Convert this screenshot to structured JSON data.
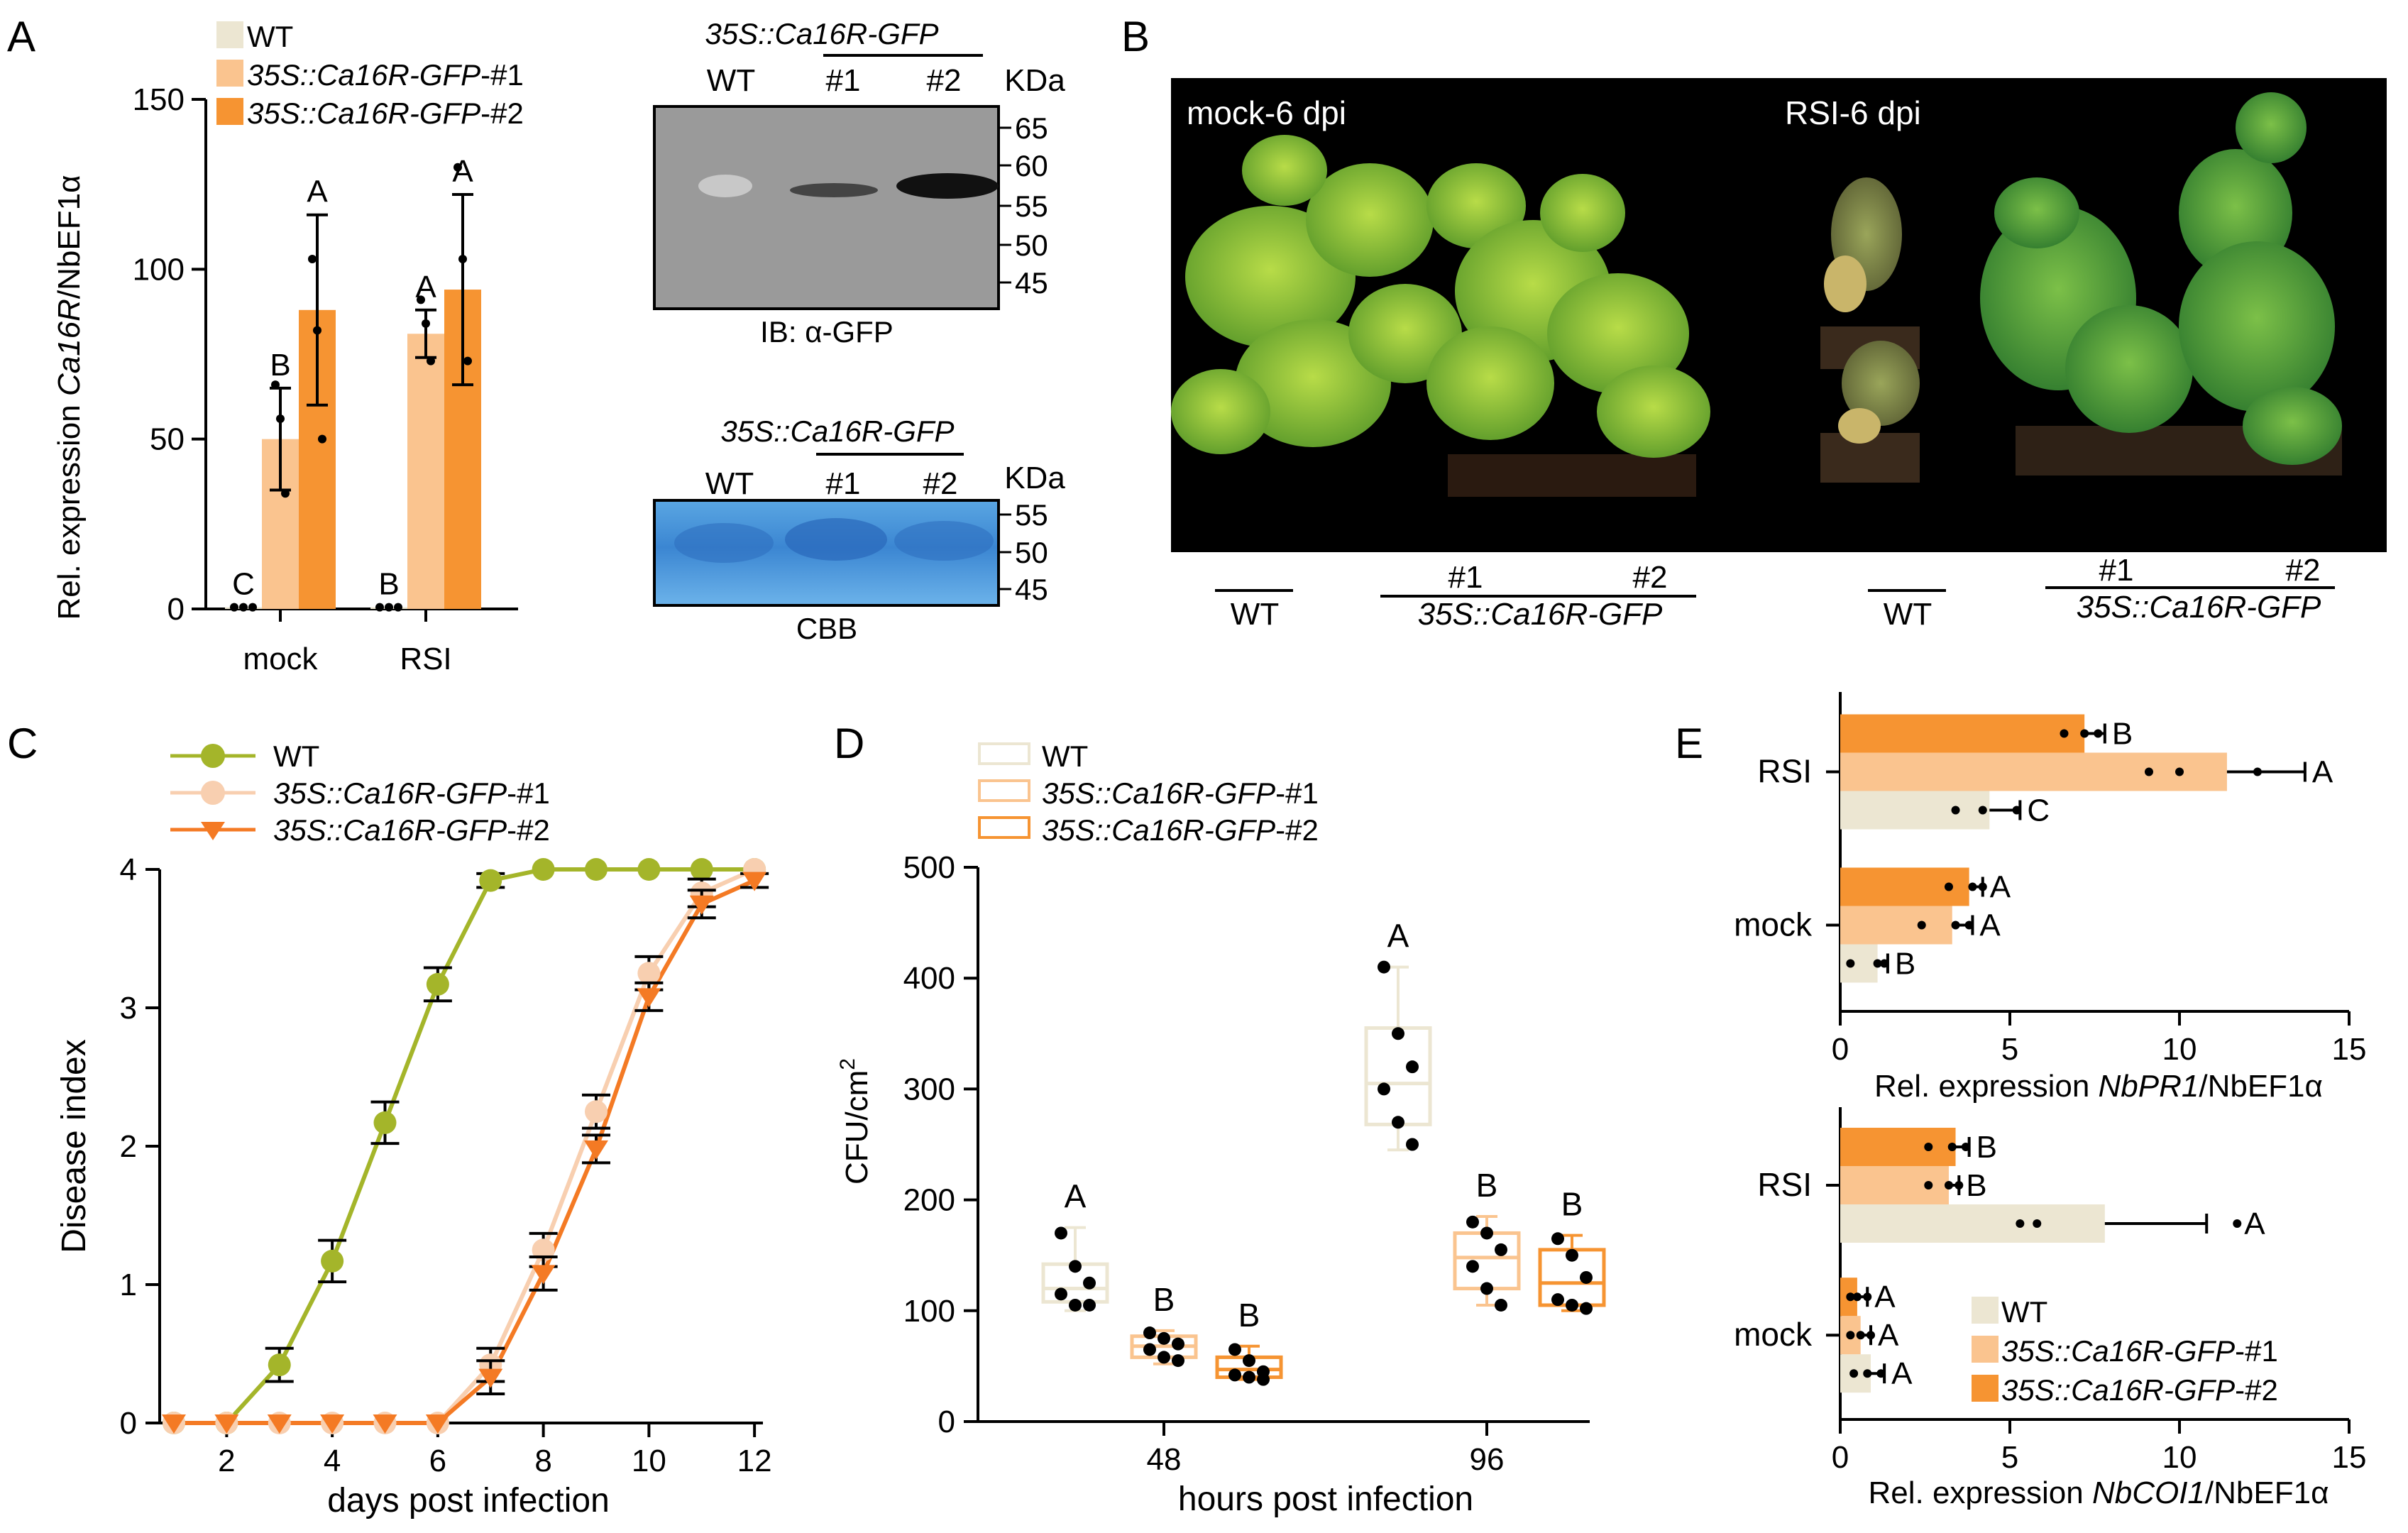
{
  "colors": {
    "wt": "#ece6d2",
    "l1": "#fac48f",
    "l2": "#f69432",
    "wt_line": "#a4b52a",
    "l1_line": "#f8cfb0",
    "l2_line": "#f47a24",
    "err": "#000000"
  },
  "panels": {
    "a": "A",
    "b": "B",
    "c": "C",
    "d": "D",
    "e": "E"
  },
  "legend": {
    "wt": "WT",
    "l1": "35S::Ca16R-GFP-#1",
    "l2": "35S::Ca16R-GFP-#2"
  },
  "legend_parts": {
    "prom": "35S::",
    "gene": "Ca16R",
    "tag": "-GFP",
    "n1": "-#1",
    "n2": "-#2"
  },
  "panel_a": {
    "ylabel_pre": "Rel. expression ",
    "ylabel_gene": "Ca16R",
    "ylabel_post": "/NbEF1α",
    "blot": {
      "construct": "35S::Ca16R-GFP",
      "lanes": [
        "WT",
        "#1",
        "#2"
      ],
      "unit": "KDa",
      "top_markers": [
        "65",
        "60",
        "55",
        "50",
        "45"
      ],
      "top_label": "IB: α-GFP",
      "bottom_markers": [
        "55",
        "50",
        "45"
      ],
      "bottom_label": "CBB"
    }
  },
  "panel_b": {
    "photo_left": "mock-6 dpi",
    "photo_right": "RSI-6 dpi",
    "under": [
      "WT",
      "#1",
      "#2",
      "35S::Ca16R-GFP",
      "WT",
      "#1",
      "#2",
      "35S::Ca16R-GFP"
    ]
  },
  "panel_e": {
    "top_gene": "NbPR1",
    "bottom_gene": "NbCOI1",
    "xlabel_pre": "Rel. expression  ",
    "xlabel_post": "/NbEF1α"
  },
  "chart_data": [
    {
      "panel": "A",
      "type": "bar",
      "title": "",
      "categories": [
        "mock",
        "RSI"
      ],
      "series": [
        {
          "name": "WT",
          "values": [
            0.5,
            0.5
          ],
          "sd": [
            0,
            0
          ],
          "letters": [
            "C",
            "B"
          ],
          "points": [
            [
              0.5,
              0.5,
              0.5
            ],
            [
              0.5,
              0.5,
              0.5
            ]
          ]
        },
        {
          "name": "35S::Ca16R-GFP-#1",
          "values": [
            50,
            81
          ],
          "sd": [
            15,
            7
          ],
          "letters": [
            "B",
            "A"
          ],
          "points": [
            [
              66,
              56,
              34
            ],
            [
              91,
              84,
              73
            ]
          ]
        },
        {
          "name": "35S::Ca16R-GFP-#2",
          "values": [
            88,
            94
          ],
          "sd": [
            28,
            28
          ],
          "letters": [
            "A",
            "A"
          ],
          "points": [
            [
              103,
              82,
              50
            ],
            [
              130,
              103,
              73
            ]
          ]
        }
      ],
      "ylim": [
        0,
        150
      ],
      "yticks": [
        "0",
        "50",
        "100",
        "150"
      ],
      "xlabel": "",
      "ylabel": "Rel. expression Ca16R/NbEF1α"
    },
    {
      "panel": "C",
      "type": "line",
      "x": [
        1,
        2,
        3,
        4,
        5,
        6,
        7,
        8,
        9,
        10,
        11,
        12
      ],
      "series": [
        {
          "name": "WT",
          "values": [
            0,
            0,
            0.42,
            1.17,
            2.17,
            3.17,
            3.92,
            4,
            4,
            4,
            4,
            4
          ],
          "sd": [
            0,
            0,
            0.12,
            0.15,
            0.15,
            0.12,
            0.05,
            0,
            0,
            0,
            0,
            0
          ]
        },
        {
          "name": "35S::Ca16R-GFP-#1",
          "values": [
            0,
            0,
            0,
            0,
            0,
            0,
            0.42,
            1.25,
            2.25,
            3.25,
            3.83,
            4
          ],
          "sd": [
            0,
            0,
            0,
            0,
            0,
            0,
            0.12,
            0.12,
            0.12,
            0.12,
            0.1,
            0
          ]
        },
        {
          "name": "35S::Ca16R-GFP-#2",
          "values": [
            0,
            0,
            0,
            0,
            0,
            0,
            0.33,
            1.08,
            1.98,
            3.08,
            3.75,
            3.92
          ],
          "sd": [
            0,
            0,
            0,
            0,
            0,
            0,
            0.12,
            0.12,
            0.1,
            0.1,
            0.1,
            0.05
          ]
        }
      ],
      "xlim": [
        1,
        12
      ],
      "ylim": [
        0,
        4
      ],
      "xticks": [
        "2",
        "4",
        "6",
        "8",
        "10",
        "12"
      ],
      "yticks": [
        "0",
        "1",
        "2",
        "3",
        "4"
      ],
      "xlabel": "days post infection",
      "ylabel": "Disease index"
    },
    {
      "panel": "D",
      "type": "box",
      "categories": [
        "48",
        "96"
      ],
      "series": [
        {
          "name": "WT",
          "boxes": [
            {
              "min": 100,
              "q1": 108,
              "median": 120,
              "q3": 142,
              "max": 175,
              "letter": "A",
              "points": [
                170,
                140,
                125,
                115,
                105,
                105
              ]
            },
            {
              "min": 245,
              "q1": 268,
              "median": 305,
              "q3": 355,
              "max": 410,
              "letter": "A",
              "points": [
                410,
                350,
                320,
                300,
                270,
                250
              ]
            }
          ]
        },
        {
          "name": "35S::Ca16R-GFP-#1",
          "boxes": [
            {
              "min": 52,
              "q1": 58,
              "median": 68,
              "q3": 77,
              "max": 82,
              "letter": "B",
              "points": [
                80,
                75,
                70,
                65,
                58,
                55
              ]
            },
            {
              "min": 105,
              "q1": 120,
              "median": 148,
              "q3": 170,
              "max": 185,
              "letter": "B",
              "points": [
                180,
                170,
                155,
                140,
                120,
                105
              ]
            }
          ]
        },
        {
          "name": "35S::Ca16R-GFP-#2",
          "boxes": [
            {
              "min": 38,
              "q1": 40,
              "median": 47,
              "q3": 58,
              "max": 68,
              "letter": "B",
              "points": [
                65,
                55,
                45,
                42,
                40,
                38
              ]
            },
            {
              "min": 100,
              "q1": 105,
              "median": 125,
              "q3": 155,
              "max": 168,
              "letter": "B",
              "points": [
                165,
                150,
                130,
                110,
                105,
                102
              ]
            }
          ]
        }
      ],
      "ylim": [
        0,
        500
      ],
      "yticks": [
        "0",
        "100",
        "200",
        "300",
        "400",
        "500"
      ],
      "xlabel": "hours post infection",
      "ylabel": "CFU/cm2",
      "ylabel_base": "CFU/cm",
      "ylabel_sup": "2"
    },
    {
      "panel": "E-top",
      "type": "bar-horizontal",
      "categories": [
        "mock",
        "RSI"
      ],
      "series": [
        {
          "name": "WT",
          "values": [
            1.1,
            4.4
          ],
          "sd": [
            0.3,
            0.9
          ],
          "letters": [
            "B",
            "C"
          ],
          "points": [
            [
              0.3,
              1.1,
              1.3
            ],
            [
              3.4,
              4.2,
              5.2
            ]
          ]
        },
        {
          "name": "35S::Ca16R-GFP-#1",
          "values": [
            3.3,
            11.4
          ],
          "sd": [
            0.6,
            2.3
          ],
          "letters": [
            "A",
            "A"
          ],
          "points": [
            [
              2.4,
              3.4,
              3.8
            ],
            [
              9.1,
              10.0,
              12.3
            ]
          ]
        },
        {
          "name": "35S::Ca16R-GFP-#2",
          "values": [
            3.8,
            7.2
          ],
          "sd": [
            0.4,
            0.6
          ],
          "letters": [
            "A",
            "B"
          ],
          "points": [
            [
              3.2,
              3.9,
              4.2
            ],
            [
              6.6,
              7.2,
              7.6
            ]
          ]
        }
      ],
      "xlim": [
        0,
        15
      ],
      "xticks": [
        "0",
        "5",
        "10",
        "15"
      ],
      "xlabel": "Rel. expression NbPR1/NbEF1α"
    },
    {
      "panel": "E-bottom",
      "type": "bar-horizontal",
      "categories": [
        "mock",
        "RSI"
      ],
      "series": [
        {
          "name": "WT",
          "values": [
            0.9,
            7.8
          ],
          "sd": [
            0.4,
            3.0
          ],
          "letters": [
            "A",
            "A"
          ],
          "points": [
            [
              0.4,
              0.8,
              1.2
            ],
            [
              5.3,
              5.8,
              11.7
            ]
          ]
        },
        {
          "name": "35S::Ca16R-GFP-#1",
          "values": [
            0.6,
            3.2
          ],
          "sd": [
            0.3,
            0.3
          ],
          "letters": [
            "A",
            "B"
          ],
          "points": [
            [
              0.3,
              0.6,
              0.9
            ],
            [
              2.6,
              3.2,
              3.5
            ]
          ]
        },
        {
          "name": "35S::Ca16R-GFP-#2",
          "values": [
            0.5,
            3.4
          ],
          "sd": [
            0.3,
            0.4
          ],
          "letters": [
            "A",
            "B"
          ],
          "points": [
            [
              0.3,
              0.5,
              0.8
            ],
            [
              2.6,
              3.3,
              3.7
            ]
          ]
        }
      ],
      "xlim": [
        0,
        15
      ],
      "xticks": [
        "0",
        "5",
        "10",
        "15"
      ],
      "xlabel": "Rel. expression NbCOI1/NbEF1α"
    }
  ]
}
